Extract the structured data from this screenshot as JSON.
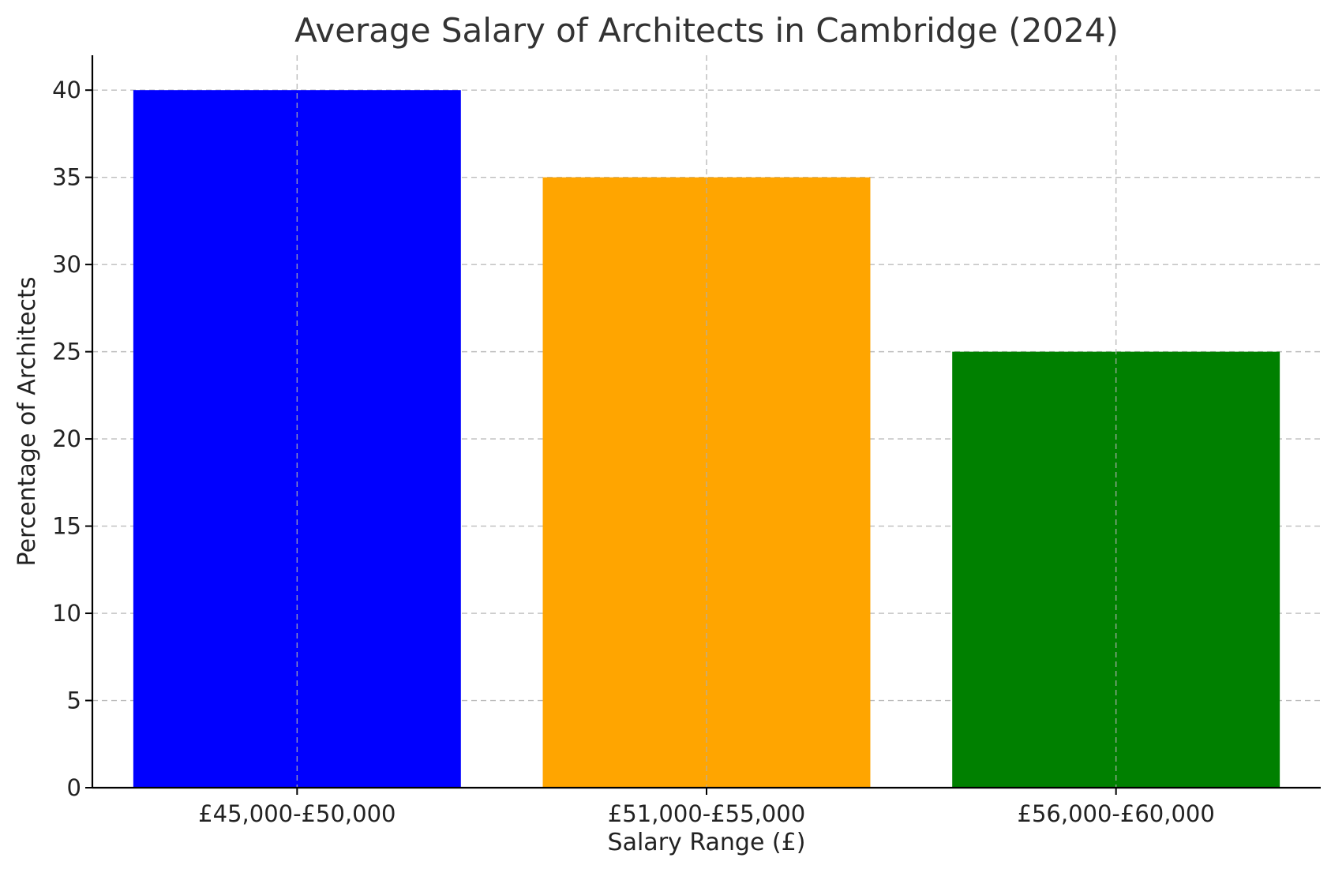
{
  "chart_data": {
    "type": "bar",
    "title": "Average Salary of Architects in Cambridge (2024)",
    "xlabel": "Salary Range (£)",
    "ylabel": "Percentage of Architects",
    "categories": [
      "£45,000-£50,000",
      "£51,000-£55,000",
      "£56,000-£60,000"
    ],
    "values": [
      40,
      35,
      25
    ],
    "colors": [
      "#0000ff",
      "#ffa500",
      "#008000"
    ],
    "ylim": [
      0,
      42
    ],
    "yticks": [
      0,
      5,
      10,
      15,
      20,
      25,
      30,
      35,
      40
    ],
    "grid": true,
    "legend": "none"
  }
}
